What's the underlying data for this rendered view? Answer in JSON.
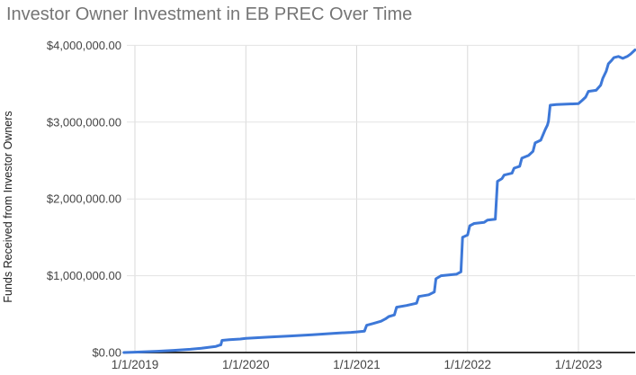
{
  "chart_data": {
    "type": "line",
    "title": "Investor Owner Investment in EB PREC Over Time",
    "xlabel": "",
    "ylabel": "Funds Received from Investor Owners",
    "legend_position": "none",
    "grid": true,
    "colors": {
      "line": "#3d78d8",
      "title": "#757575",
      "tick_label": "#444444",
      "axis_title": "#1f1f1f",
      "h_grid": "#e3e3e3",
      "v_grid": "#d9d9d9",
      "axis_line": "#333333",
      "background": "#ffffff"
    },
    "x_axis": {
      "ticks": [
        {
          "label": "1/1/2019",
          "year": 2019
        },
        {
          "label": "1/1/2020",
          "year": 2020
        },
        {
          "label": "1/1/2021",
          "year": 2021
        },
        {
          "label": "1/1/2022",
          "year": 2022
        },
        {
          "label": "1/1/2023",
          "year": 2023
        }
      ],
      "range_years": [
        2018.9,
        2023.52
      ]
    },
    "y_axis": {
      "ticks": [
        {
          "label": "$0.00",
          "value": 0
        },
        {
          "label": "$1,000,000.00",
          "value": 1000000
        },
        {
          "label": "$2,000,000.00",
          "value": 2000000
        },
        {
          "label": "$3,000,000.00",
          "value": 3000000
        },
        {
          "label": "$4,000,000.00",
          "value": 4000000
        }
      ],
      "range": [
        0,
        4000000
      ]
    },
    "series": [
      {
        "name": "Funds Received from Investor Owners",
        "color": "#3d78d8",
        "points_year_value": [
          [
            2018.9,
            0
          ],
          [
            2019.0,
            5000
          ],
          [
            2019.1,
            10000
          ],
          [
            2019.2,
            16000
          ],
          [
            2019.35,
            28000
          ],
          [
            2019.5,
            42000
          ],
          [
            2019.6,
            56000
          ],
          [
            2019.68,
            70000
          ],
          [
            2019.73,
            80000
          ],
          [
            2019.76,
            95000
          ],
          [
            2019.775,
            100000
          ],
          [
            2019.785,
            158000
          ],
          [
            2019.85,
            166000
          ],
          [
            2019.95,
            176000
          ],
          [
            2020.0,
            185000
          ],
          [
            2020.2,
            200000
          ],
          [
            2020.4,
            215000
          ],
          [
            2020.6,
            232000
          ],
          [
            2020.8,
            250000
          ],
          [
            2020.95,
            262000
          ],
          [
            2021.0,
            268000
          ],
          [
            2021.07,
            278000
          ],
          [
            2021.09,
            355000
          ],
          [
            2021.15,
            378000
          ],
          [
            2021.22,
            408000
          ],
          [
            2021.26,
            438000
          ],
          [
            2021.29,
            468000
          ],
          [
            2021.34,
            490000
          ],
          [
            2021.36,
            590000
          ],
          [
            2021.45,
            612000
          ],
          [
            2021.54,
            642000
          ],
          [
            2021.56,
            730000
          ],
          [
            2021.65,
            752000
          ],
          [
            2021.7,
            788000
          ],
          [
            2021.715,
            960000
          ],
          [
            2021.76,
            1000000
          ],
          [
            2021.9,
            1020000
          ],
          [
            2021.94,
            1050000
          ],
          [
            2021.955,
            1500000
          ],
          [
            2022.0,
            1530000
          ],
          [
            2022.02,
            1650000
          ],
          [
            2022.06,
            1680000
          ],
          [
            2022.15,
            1695000
          ],
          [
            2022.18,
            1725000
          ],
          [
            2022.25,
            1735000
          ],
          [
            2022.27,
            2230000
          ],
          [
            2022.31,
            2265000
          ],
          [
            2022.33,
            2310000
          ],
          [
            2022.4,
            2335000
          ],
          [
            2022.42,
            2400000
          ],
          [
            2022.47,
            2425000
          ],
          [
            2022.49,
            2530000
          ],
          [
            2022.55,
            2565000
          ],
          [
            2022.59,
            2620000
          ],
          [
            2022.61,
            2730000
          ],
          [
            2022.66,
            2765000
          ],
          [
            2022.7,
            2900000
          ],
          [
            2022.72,
            2960000
          ],
          [
            2022.73,
            3010000
          ],
          [
            2022.745,
            3220000
          ],
          [
            2022.8,
            3230000
          ],
          [
            2023.0,
            3240000
          ],
          [
            2023.035,
            3285000
          ],
          [
            2023.065,
            3325000
          ],
          [
            2023.09,
            3400000
          ],
          [
            2023.16,
            3415000
          ],
          [
            2023.2,
            3480000
          ],
          [
            2023.22,
            3570000
          ],
          [
            2023.25,
            3660000
          ],
          [
            2023.27,
            3760000
          ],
          [
            2023.3,
            3805000
          ],
          [
            2023.32,
            3840000
          ],
          [
            2023.36,
            3855000
          ],
          [
            2023.4,
            3830000
          ],
          [
            2023.44,
            3855000
          ],
          [
            2023.47,
            3885000
          ],
          [
            2023.51,
            3940000
          ]
        ]
      }
    ]
  }
}
